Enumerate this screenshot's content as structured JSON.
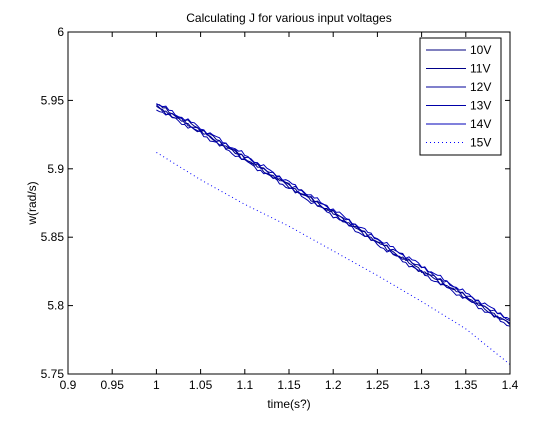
{
  "chart_data": {
    "type": "line",
    "title": "Calculating J for various input voltages",
    "xlabel": "time(s?)",
    "ylabel": "w(rad/s)",
    "xlim": [
      0.9,
      1.4
    ],
    "ylim": [
      5.75,
      6.0
    ],
    "xticks": [
      "0.9",
      "0.95",
      "1",
      "1.05",
      "1.1",
      "1.15",
      "1.2",
      "1.25",
      "1.3",
      "1.35",
      "1.4"
    ],
    "yticks": [
      "5.75",
      "5.8",
      "5.85",
      "5.9",
      "5.95",
      "6"
    ],
    "grid": false,
    "legend_position": "top-right",
    "series": [
      {
        "name": "10V",
        "style": "solid",
        "color": "#00007f",
        "x": [
          1.0,
          1.05,
          1.1,
          1.15,
          1.2,
          1.25,
          1.3,
          1.35,
          1.4
        ],
        "y": [
          5.947,
          5.929,
          5.908,
          5.888,
          5.868,
          5.847,
          5.826,
          5.807,
          5.787
        ]
      },
      {
        "name": "11V",
        "style": "solid",
        "color": "#000088",
        "x": [
          1.0,
          1.05,
          1.1,
          1.15,
          1.2,
          1.25,
          1.3,
          1.35,
          1.4
        ],
        "y": [
          5.945,
          5.927,
          5.907,
          5.887,
          5.867,
          5.846,
          5.825,
          5.806,
          5.786
        ]
      },
      {
        "name": "12V",
        "style": "solid",
        "color": "#000099",
        "x": [
          1.0,
          1.05,
          1.1,
          1.15,
          1.2,
          1.25,
          1.3,
          1.35,
          1.4
        ],
        "y": [
          5.946,
          5.928,
          5.909,
          5.889,
          5.869,
          5.848,
          5.828,
          5.808,
          5.789
        ]
      },
      {
        "name": "13V",
        "style": "solid",
        "color": "#0000a8",
        "x": [
          1.0,
          1.05,
          1.1,
          1.15,
          1.2,
          1.25,
          1.3,
          1.35,
          1.4
        ],
        "y": [
          5.944,
          5.926,
          5.906,
          5.886,
          5.866,
          5.845,
          5.824,
          5.805,
          5.785
        ]
      },
      {
        "name": "14V",
        "style": "solid",
        "color": "#0000b8",
        "x": [
          1.0,
          1.05,
          1.1,
          1.15,
          1.2,
          1.25,
          1.3,
          1.35,
          1.4
        ],
        "y": [
          5.948,
          5.93,
          5.91,
          5.89,
          5.87,
          5.849,
          5.829,
          5.809,
          5.79
        ]
      },
      {
        "name": "15V",
        "style": "dotted",
        "color": "#0000ff",
        "x": [
          1.0,
          1.05,
          1.1,
          1.15,
          1.2,
          1.25,
          1.3,
          1.35,
          1.4
        ],
        "y": [
          5.912,
          5.892,
          5.874,
          5.858,
          5.84,
          5.822,
          5.803,
          5.783,
          5.757
        ]
      }
    ]
  }
}
